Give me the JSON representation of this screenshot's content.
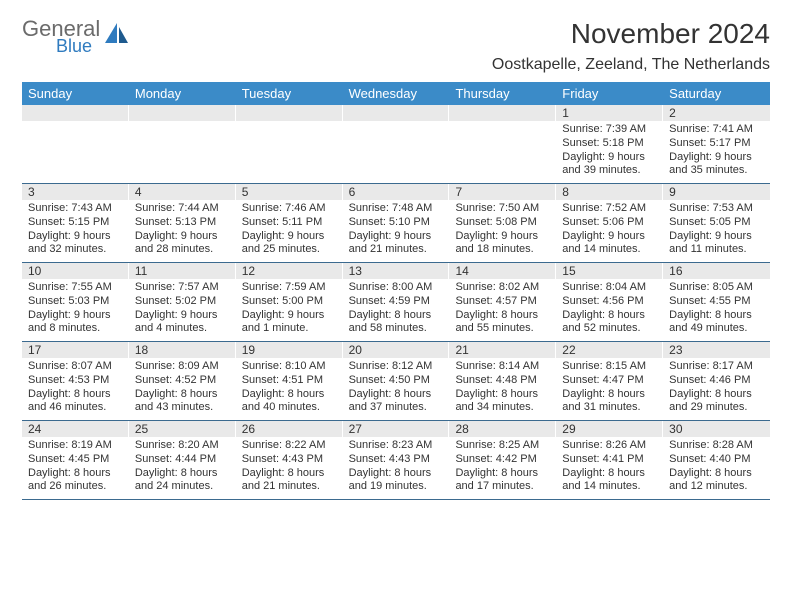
{
  "brand": {
    "line1": "General",
    "line2": "Blue"
  },
  "title": "November 2024",
  "location": "Oostkapelle, Zeeland, The Netherlands",
  "colors": {
    "header_bg": "#3b8bc8",
    "header_text": "#ffffff",
    "daynum_bg": "#e9e9e9",
    "week_border": "#3b6a8f",
    "logo_gray": "#6b6b6b",
    "logo_blue": "#2f7bbf",
    "text": "#333333"
  },
  "dayNames": [
    "Sunday",
    "Monday",
    "Tuesday",
    "Wednesday",
    "Thursday",
    "Friday",
    "Saturday"
  ],
  "weeks": [
    [
      {
        "empty": true
      },
      {
        "empty": true
      },
      {
        "empty": true
      },
      {
        "empty": true
      },
      {
        "empty": true
      },
      {
        "n": "1",
        "sunrise": "7:39 AM",
        "sunset": "5:18 PM",
        "daylight": "9 hours and 39 minutes."
      },
      {
        "n": "2",
        "sunrise": "7:41 AM",
        "sunset": "5:17 PM",
        "daylight": "9 hours and 35 minutes."
      }
    ],
    [
      {
        "n": "3",
        "sunrise": "7:43 AM",
        "sunset": "5:15 PM",
        "daylight": "9 hours and 32 minutes."
      },
      {
        "n": "4",
        "sunrise": "7:44 AM",
        "sunset": "5:13 PM",
        "daylight": "9 hours and 28 minutes."
      },
      {
        "n": "5",
        "sunrise": "7:46 AM",
        "sunset": "5:11 PM",
        "daylight": "9 hours and 25 minutes."
      },
      {
        "n": "6",
        "sunrise": "7:48 AM",
        "sunset": "5:10 PM",
        "daylight": "9 hours and 21 minutes."
      },
      {
        "n": "7",
        "sunrise": "7:50 AM",
        "sunset": "5:08 PM",
        "daylight": "9 hours and 18 minutes."
      },
      {
        "n": "8",
        "sunrise": "7:52 AM",
        "sunset": "5:06 PM",
        "daylight": "9 hours and 14 minutes."
      },
      {
        "n": "9",
        "sunrise": "7:53 AM",
        "sunset": "5:05 PM",
        "daylight": "9 hours and 11 minutes."
      }
    ],
    [
      {
        "n": "10",
        "sunrise": "7:55 AM",
        "sunset": "5:03 PM",
        "daylight": "9 hours and 8 minutes."
      },
      {
        "n": "11",
        "sunrise": "7:57 AM",
        "sunset": "5:02 PM",
        "daylight": "9 hours and 4 minutes."
      },
      {
        "n": "12",
        "sunrise": "7:59 AM",
        "sunset": "5:00 PM",
        "daylight": "9 hours and 1 minute."
      },
      {
        "n": "13",
        "sunrise": "8:00 AM",
        "sunset": "4:59 PM",
        "daylight": "8 hours and 58 minutes."
      },
      {
        "n": "14",
        "sunrise": "8:02 AM",
        "sunset": "4:57 PM",
        "daylight": "8 hours and 55 minutes."
      },
      {
        "n": "15",
        "sunrise": "8:04 AM",
        "sunset": "4:56 PM",
        "daylight": "8 hours and 52 minutes."
      },
      {
        "n": "16",
        "sunrise": "8:05 AM",
        "sunset": "4:55 PM",
        "daylight": "8 hours and 49 minutes."
      }
    ],
    [
      {
        "n": "17",
        "sunrise": "8:07 AM",
        "sunset": "4:53 PM",
        "daylight": "8 hours and 46 minutes."
      },
      {
        "n": "18",
        "sunrise": "8:09 AM",
        "sunset": "4:52 PM",
        "daylight": "8 hours and 43 minutes."
      },
      {
        "n": "19",
        "sunrise": "8:10 AM",
        "sunset": "4:51 PM",
        "daylight": "8 hours and 40 minutes."
      },
      {
        "n": "20",
        "sunrise": "8:12 AM",
        "sunset": "4:50 PM",
        "daylight": "8 hours and 37 minutes."
      },
      {
        "n": "21",
        "sunrise": "8:14 AM",
        "sunset": "4:48 PM",
        "daylight": "8 hours and 34 minutes."
      },
      {
        "n": "22",
        "sunrise": "8:15 AM",
        "sunset": "4:47 PM",
        "daylight": "8 hours and 31 minutes."
      },
      {
        "n": "23",
        "sunrise": "8:17 AM",
        "sunset": "4:46 PM",
        "daylight": "8 hours and 29 minutes."
      }
    ],
    [
      {
        "n": "24",
        "sunrise": "8:19 AM",
        "sunset": "4:45 PM",
        "daylight": "8 hours and 26 minutes."
      },
      {
        "n": "25",
        "sunrise": "8:20 AM",
        "sunset": "4:44 PM",
        "daylight": "8 hours and 24 minutes."
      },
      {
        "n": "26",
        "sunrise": "8:22 AM",
        "sunset": "4:43 PM",
        "daylight": "8 hours and 21 minutes."
      },
      {
        "n": "27",
        "sunrise": "8:23 AM",
        "sunset": "4:43 PM",
        "daylight": "8 hours and 19 minutes."
      },
      {
        "n": "28",
        "sunrise": "8:25 AM",
        "sunset": "4:42 PM",
        "daylight": "8 hours and 17 minutes."
      },
      {
        "n": "29",
        "sunrise": "8:26 AM",
        "sunset": "4:41 PM",
        "daylight": "8 hours and 14 minutes."
      },
      {
        "n": "30",
        "sunrise": "8:28 AM",
        "sunset": "4:40 PM",
        "daylight": "8 hours and 12 minutes."
      }
    ]
  ],
  "labels": {
    "sunrise": "Sunrise:",
    "sunset": "Sunset:",
    "daylight": "Daylight:"
  }
}
